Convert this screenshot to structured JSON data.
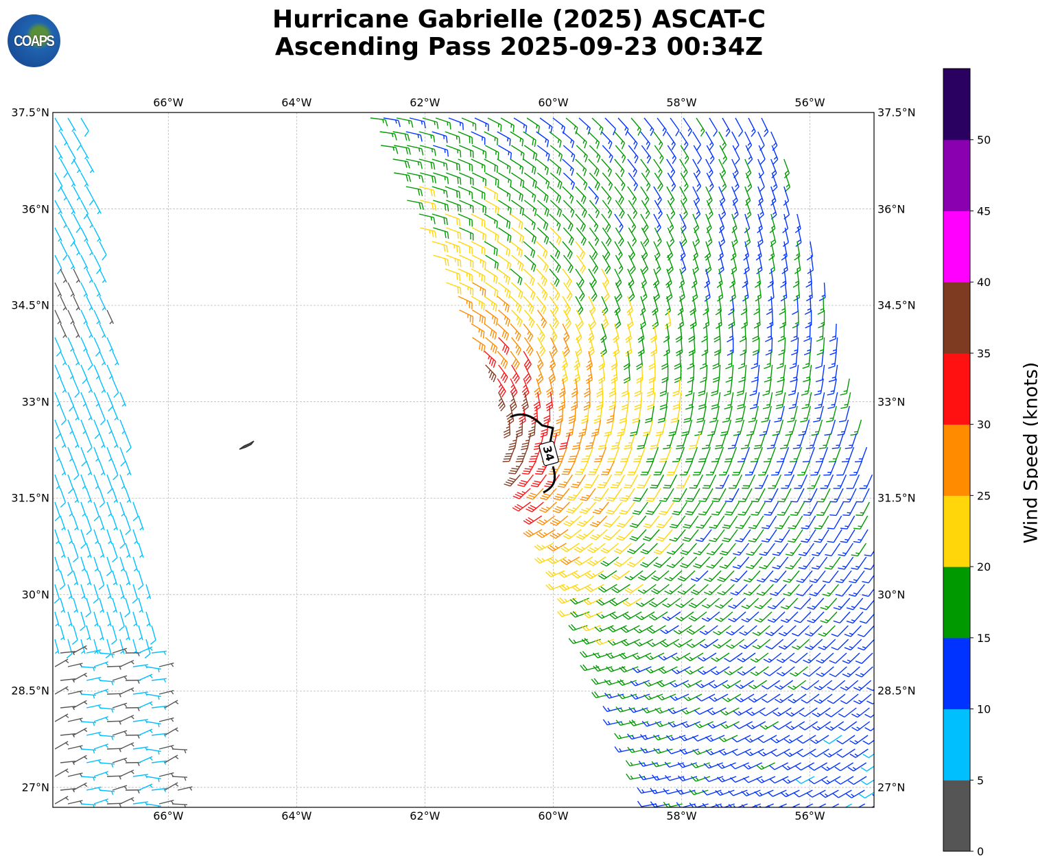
{
  "title": {
    "line1": "Hurricane Gabrielle (2025) ASCAT-C",
    "line2": "Ascending Pass 2025-09-23 00:34Z"
  },
  "logo": {
    "text": "COAPS"
  },
  "map": {
    "lon_ticks": [
      "66°W",
      "64°W",
      "62°W",
      "60°W",
      "58°W",
      "56°W"
    ],
    "lon_values": [
      -66,
      -64,
      -62,
      -60,
      -58,
      -56
    ],
    "lat_ticks": [
      "37.5°N",
      "36°N",
      "34.5°N",
      "33°N",
      "31.5°N",
      "30°N",
      "28.5°N",
      "27°N"
    ],
    "lat_values": [
      37.5,
      36,
      34.5,
      33,
      31.5,
      30,
      28.5,
      27
    ],
    "extent": {
      "lon_min": -67.8,
      "lon_max": -55.0,
      "lat_min": 26.69,
      "lat_max": 37.5
    },
    "contour_label": "34"
  },
  "colorbar": {
    "label": "Wind Speed (knots)",
    "tick_labels": [
      "0",
      "5",
      "10",
      "15",
      "20",
      "25",
      "30",
      "35",
      "40",
      "45",
      "50"
    ],
    "bounds": [
      0,
      5,
      10,
      15,
      20,
      25,
      30,
      35,
      40,
      45,
      50,
      55
    ],
    "colors": [
      "#555555",
      "#00bfff",
      "#0033ff",
      "#009900",
      "#ffd60a",
      "#ff8c00",
      "#ff1111",
      "#7f3a22",
      "#ff00ff",
      "#8a00b0",
      "#2a0060"
    ]
  }
}
